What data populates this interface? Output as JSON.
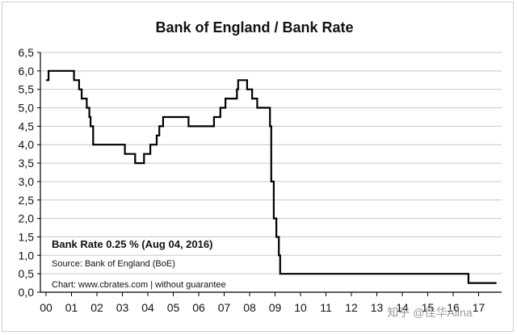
{
  "chart_data": {
    "type": "line",
    "title": "Bank of England / Bank Rate",
    "xlabel": "",
    "ylabel": "",
    "xlim": [
      2000.0,
      2017.9
    ],
    "ylim": [
      0.0,
      6.5
    ],
    "y_ticks": [
      "0,0",
      "0,5",
      "1,0",
      "1,5",
      "2,0",
      "2,5",
      "3,0",
      "3,5",
      "4,0",
      "4,5",
      "5,0",
      "5,5",
      "6,0",
      "6,5"
    ],
    "x_ticks": [
      "00",
      "01",
      "02",
      "03",
      "04",
      "05",
      "06",
      "07",
      "08",
      "09",
      "10",
      "11",
      "12",
      "13",
      "14",
      "15",
      "16",
      "17"
    ],
    "grid": "horizontal",
    "series": [
      {
        "step": "post",
        "points": [
          [
            2000.0,
            5.75
          ],
          [
            2000.1,
            6.0
          ],
          [
            2001.1,
            5.75
          ],
          [
            2001.3,
            5.5
          ],
          [
            2001.4,
            5.25
          ],
          [
            2001.6,
            5.0
          ],
          [
            2001.7,
            4.75
          ],
          [
            2001.75,
            4.5
          ],
          [
            2001.85,
            4.0
          ],
          [
            2003.1,
            3.75
          ],
          [
            2003.5,
            3.5
          ],
          [
            2003.85,
            3.75
          ],
          [
            2004.1,
            4.0
          ],
          [
            2004.35,
            4.25
          ],
          [
            2004.45,
            4.5
          ],
          [
            2004.6,
            4.75
          ],
          [
            2005.6,
            4.5
          ],
          [
            2006.6,
            4.75
          ],
          [
            2006.85,
            5.0
          ],
          [
            2007.05,
            5.25
          ],
          [
            2007.5,
            5.5
          ],
          [
            2007.55,
            5.75
          ],
          [
            2007.9,
            5.5
          ],
          [
            2008.1,
            5.25
          ],
          [
            2008.3,
            5.0
          ],
          [
            2008.8,
            4.5
          ],
          [
            2008.85,
            3.0
          ],
          [
            2008.95,
            2.0
          ],
          [
            2009.05,
            1.5
          ],
          [
            2009.15,
            1.0
          ],
          [
            2009.2,
            0.5
          ],
          [
            2016.6,
            0.25
          ],
          [
            2017.7,
            0.25
          ]
        ]
      }
    ],
    "annotations": {
      "current_rate": "Bank Rate 0.25 % (Aug 04, 2016)",
      "source": "Source: Bank of England (BoE)",
      "credit": "Chart: www.cbrates.com | without guarantee"
    }
  },
  "watermark": "知乎 @佳华Alina",
  "colors": {
    "line": "#000000",
    "grid": "#c8c8c8",
    "axis": "#000000"
  }
}
